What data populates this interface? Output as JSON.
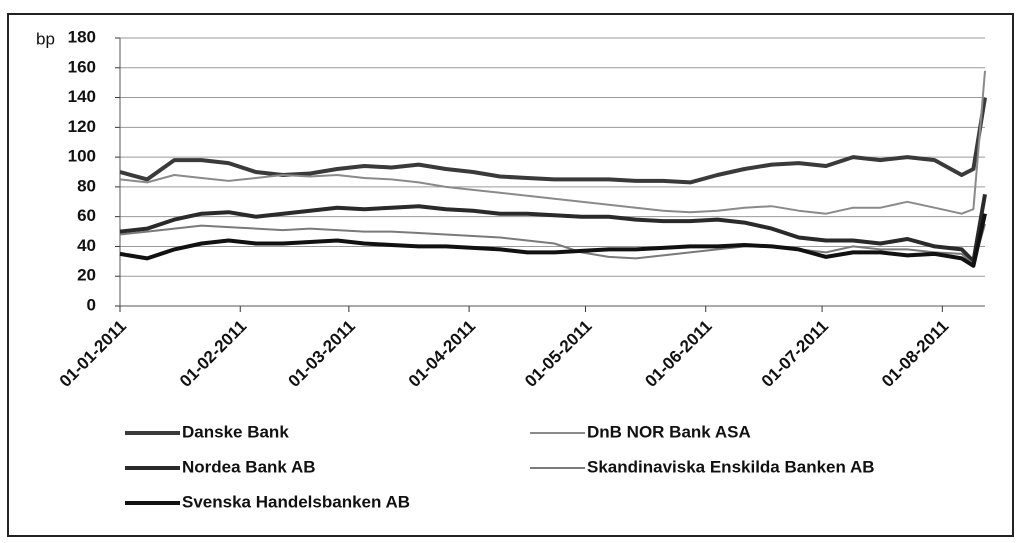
{
  "chart_data": {
    "type": "line",
    "y_label": "bp",
    "x": [
      "01-01-2011",
      "08-01-2011",
      "15-01-2011",
      "22-01-2011",
      "29-01-2011",
      "05-02-2011",
      "12-02-2011",
      "19-02-2011",
      "26-02-2011",
      "05-03-2011",
      "12-03-2011",
      "19-03-2011",
      "26-03-2011",
      "02-04-2011",
      "09-04-2011",
      "16-04-2011",
      "23-04-2011",
      "30-04-2011",
      "07-05-2011",
      "14-05-2011",
      "21-05-2011",
      "28-05-2011",
      "04-06-2011",
      "11-06-2011",
      "18-06-2011",
      "25-06-2011",
      "02-07-2011",
      "09-07-2011",
      "16-07-2011",
      "23-07-2011",
      "30-07-2011",
      "06-08-2011",
      "09-08-2011",
      "12-08-2011"
    ],
    "series": [
      {
        "name": "Danske Bank",
        "color": "#3a3a3a",
        "values": [
          90,
          85,
          98,
          98,
          96,
          90,
          88,
          89,
          92,
          94,
          93,
          95,
          92,
          90,
          87,
          86,
          85,
          85,
          85,
          84,
          84,
          83,
          88,
          92,
          95,
          96,
          94,
          100,
          98,
          100,
          98,
          88,
          92,
          140
        ]
      },
      {
        "name": "DnB NOR Bank ASA",
        "color": "#8a8a8a",
        "values": [
          85,
          83,
          88,
          86,
          84,
          86,
          88,
          87,
          88,
          86,
          85,
          83,
          80,
          78,
          76,
          74,
          72,
          70,
          68,
          66,
          64,
          63,
          64,
          66,
          67,
          64,
          62,
          66,
          66,
          70,
          66,
          62,
          65,
          158
        ]
      },
      {
        "name": "Nordea Bank AB",
        "color": "#2a2a2a",
        "values": [
          50,
          52,
          58,
          62,
          63,
          60,
          62,
          64,
          66,
          65,
          66,
          67,
          65,
          64,
          62,
          62,
          61,
          60,
          60,
          58,
          57,
          57,
          58,
          56,
          52,
          46,
          44,
          44,
          42,
          45,
          40,
          38,
          30,
          75
        ]
      },
      {
        "name": "Skandinaviska Enskilda Banken AB",
        "color": "#7a7a7a",
        "values": [
          48,
          50,
          52,
          54,
          53,
          52,
          51,
          52,
          51,
          50,
          50,
          49,
          48,
          47,
          46,
          44,
          42,
          36,
          33,
          32,
          34,
          36,
          38,
          40,
          40,
          38,
          36,
          40,
          38,
          38,
          36,
          35,
          28,
          55
        ]
      },
      {
        "name": "Svenska Handelsbanken AB",
        "color": "#111111",
        "values": [
          35,
          32,
          38,
          42,
          44,
          42,
          42,
          43,
          44,
          42,
          41,
          40,
          40,
          39,
          38,
          36,
          36,
          37,
          38,
          38,
          39,
          40,
          40,
          41,
          40,
          38,
          33,
          36,
          36,
          34,
          35,
          32,
          27,
          62
        ]
      }
    ],
    "xlim": [
      "01-01-2011",
      "12-08-2011"
    ],
    "xticks": [
      "01-01-2011",
      "01-02-2011",
      "01-03-2011",
      "01-04-2011",
      "01-05-2011",
      "01-06-2011",
      "01-07-2011",
      "01-08-2011"
    ],
    "ylim": [
      0,
      180
    ],
    "yticks": [
      0,
      20,
      40,
      60,
      80,
      100,
      120,
      140,
      160,
      180
    ],
    "grid": true
  }
}
